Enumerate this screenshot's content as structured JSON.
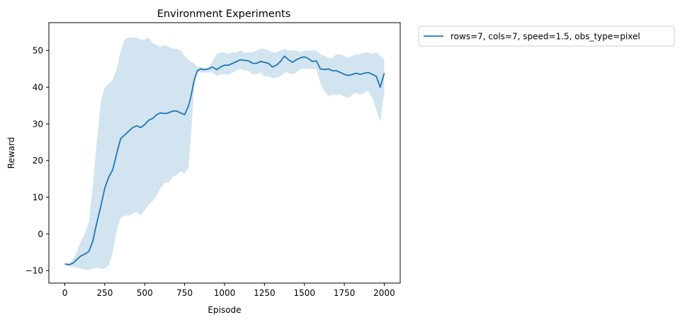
{
  "chart_data": {
    "type": "line",
    "title": "Environment Experiments",
    "xlabel": "Episode",
    "ylabel": "Reward",
    "xlim": [
      -100,
      2100
    ],
    "ylim": [
      -13.4,
      57.6
    ],
    "xticks": [
      0,
      250,
      500,
      750,
      1000,
      1250,
      1500,
      1750,
      2000
    ],
    "yticks": [
      -10,
      0,
      10,
      20,
      30,
      40,
      50
    ],
    "grid": false,
    "legend_position": "outside-top-right",
    "series": [
      {
        "name": "rows=7, cols=7, speed=1.5, obs_type=pixel",
        "color": "#1f77b4",
        "band_color": "#1f77b4",
        "band_opacity": 0.2,
        "x": [
          0,
          25,
          50,
          75,
          100,
          125,
          150,
          175,
          200,
          225,
          250,
          275,
          300,
          325,
          350,
          375,
          400,
          425,
          450,
          475,
          500,
          525,
          550,
          575,
          600,
          625,
          650,
          675,
          700,
          725,
          750,
          775,
          790,
          810,
          830,
          850,
          875,
          900,
          925,
          950,
          975,
          1000,
          1025,
          1050,
          1075,
          1100,
          1125,
          1150,
          1175,
          1200,
          1225,
          1250,
          1275,
          1300,
          1325,
          1350,
          1375,
          1400,
          1425,
          1450,
          1475,
          1500,
          1525,
          1550,
          1575,
          1600,
          1625,
          1650,
          1675,
          1700,
          1725,
          1750,
          1775,
          1800,
          1825,
          1850,
          1875,
          1900,
          1925,
          1950,
          1975,
          2000
        ],
        "mean": [
          -8.2,
          -8.4,
          -8.0,
          -7.0,
          -6.0,
          -5.5,
          -4.8,
          -2.0,
          3.0,
          7.5,
          12.5,
          15.5,
          17.5,
          22.0,
          26.0,
          27.0,
          28.0,
          29.0,
          29.5,
          29.0,
          29.8,
          31.0,
          31.5,
          32.5,
          33.0,
          32.8,
          33.0,
          33.5,
          33.5,
          33.0,
          32.5,
          35.0,
          37.5,
          42.0,
          44.5,
          45.0,
          44.8,
          45.0,
          45.5,
          44.8,
          45.5,
          46.0,
          46.0,
          46.5,
          47.0,
          47.5,
          47.3,
          47.2,
          46.5,
          46.5,
          47.0,
          46.8,
          46.5,
          45.5,
          46.0,
          47.0,
          48.5,
          47.5,
          46.8,
          47.5,
          48.0,
          48.3,
          47.8,
          47.0,
          47.2,
          45.0,
          44.8,
          45.0,
          44.5,
          44.5,
          44.0,
          43.5,
          43.2,
          43.5,
          43.8,
          43.5,
          43.8,
          44.0,
          43.5,
          43.0,
          40.0,
          43.8
        ],
        "upper": [
          -8.0,
          -8.0,
          -7.0,
          -5.0,
          -2.0,
          0.0,
          3.0,
          13.0,
          25.0,
          36.0,
          40.0,
          41.0,
          42.0,
          45.0,
          50.0,
          53.0,
          53.5,
          53.5,
          53.5,
          53.0,
          53.0,
          53.5,
          52.0,
          51.5,
          51.0,
          51.5,
          51.0,
          50.5,
          50.5,
          50.0,
          48.5,
          47.5,
          47.0,
          46.5,
          45.5,
          45.5,
          45.0,
          45.5,
          47.0,
          49.0,
          49.5,
          49.5,
          49.0,
          49.5,
          49.5,
          50.0,
          49.5,
          49.5,
          49.5,
          50.0,
          50.5,
          50.5,
          50.0,
          49.5,
          49.5,
          50.0,
          50.5,
          50.0,
          50.0,
          50.0,
          49.5,
          50.0,
          50.0,
          50.0,
          50.0,
          49.0,
          48.5,
          48.0,
          48.0,
          49.0,
          49.0,
          48.5,
          48.0,
          48.5,
          49.0,
          49.0,
          49.5,
          49.5,
          49.0,
          49.5,
          48.5,
          47.5
        ],
        "lower": [
          -8.4,
          -8.8,
          -9.0,
          -9.2,
          -9.5,
          -9.8,
          -9.8,
          -9.5,
          -9.2,
          -9.5,
          -9.5,
          -8.5,
          -5.0,
          1.0,
          4.5,
          5.0,
          5.0,
          5.5,
          6.0,
          5.0,
          6.5,
          8.0,
          9.0,
          10.5,
          12.5,
          14.0,
          14.0,
          15.5,
          16.0,
          17.0,
          16.5,
          18.0,
          27.0,
          40.0,
          44.0,
          44.0,
          44.0,
          44.0,
          44.0,
          43.0,
          43.5,
          43.5,
          43.5,
          44.0,
          44.5,
          45.0,
          44.5,
          44.5,
          43.5,
          43.5,
          44.0,
          43.0,
          43.0,
          42.5,
          42.5,
          43.0,
          44.0,
          44.0,
          43.5,
          44.0,
          45.0,
          45.0,
          45.0,
          45.0,
          45.0,
          41.0,
          39.0,
          37.5,
          38.0,
          38.0,
          38.0,
          37.5,
          37.0,
          38.0,
          38.5,
          38.0,
          38.5,
          39.0,
          37.0,
          34.0,
          30.5,
          38.5
        ]
      }
    ]
  }
}
